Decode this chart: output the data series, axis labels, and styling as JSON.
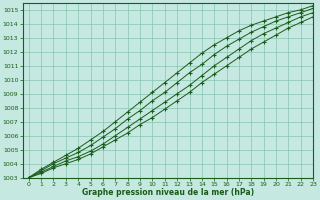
{
  "xlabel": "Graphe pression niveau de la mer (hPa)",
  "xlim": [
    -0.5,
    23
  ],
  "ylim": [
    1003,
    1015.5
  ],
  "yticks": [
    1003,
    1004,
    1005,
    1006,
    1007,
    1008,
    1009,
    1010,
    1011,
    1012,
    1013,
    1014,
    1015
  ],
  "xticks": [
    0,
    1,
    2,
    3,
    4,
    5,
    6,
    7,
    8,
    9,
    10,
    11,
    12,
    13,
    14,
    15,
    16,
    17,
    18,
    19,
    20,
    21,
    22,
    23
  ],
  "bg_color": "#c5e8e0",
  "line_color": "#1a5c1a",
  "grid_color": "#88c4b0",
  "line1": [
    1003.0,
    1003.3,
    1003.7,
    1004.0,
    1004.3,
    1004.7,
    1005.2,
    1005.7,
    1006.2,
    1006.8,
    1007.3,
    1007.9,
    1008.5,
    1009.1,
    1009.8,
    1010.4,
    1011.0,
    1011.6,
    1012.2,
    1012.7,
    1013.2,
    1013.7,
    1014.1,
    1014.5
  ],
  "line2": [
    1003.0,
    1003.4,
    1003.8,
    1004.2,
    1004.5,
    1004.9,
    1005.4,
    1006.0,
    1006.6,
    1007.2,
    1007.8,
    1008.4,
    1009.0,
    1009.6,
    1010.3,
    1011.0,
    1011.6,
    1012.2,
    1012.8,
    1013.3,
    1013.7,
    1014.1,
    1014.5,
    1014.8
  ],
  "line3": [
    1003.0,
    1003.5,
    1004.0,
    1004.4,
    1004.8,
    1005.3,
    1005.9,
    1006.5,
    1007.2,
    1007.8,
    1008.5,
    1009.1,
    1009.8,
    1010.5,
    1011.1,
    1011.8,
    1012.4,
    1012.9,
    1013.4,
    1013.8,
    1014.2,
    1014.5,
    1014.8,
    1015.1
  ],
  "line4": [
    1003.0,
    1003.6,
    1004.1,
    1004.6,
    1005.1,
    1005.7,
    1006.3,
    1007.0,
    1007.7,
    1008.4,
    1009.1,
    1009.8,
    1010.5,
    1011.2,
    1011.9,
    1012.5,
    1013.0,
    1013.5,
    1013.9,
    1014.2,
    1014.5,
    1014.8,
    1015.0,
    1015.3
  ]
}
